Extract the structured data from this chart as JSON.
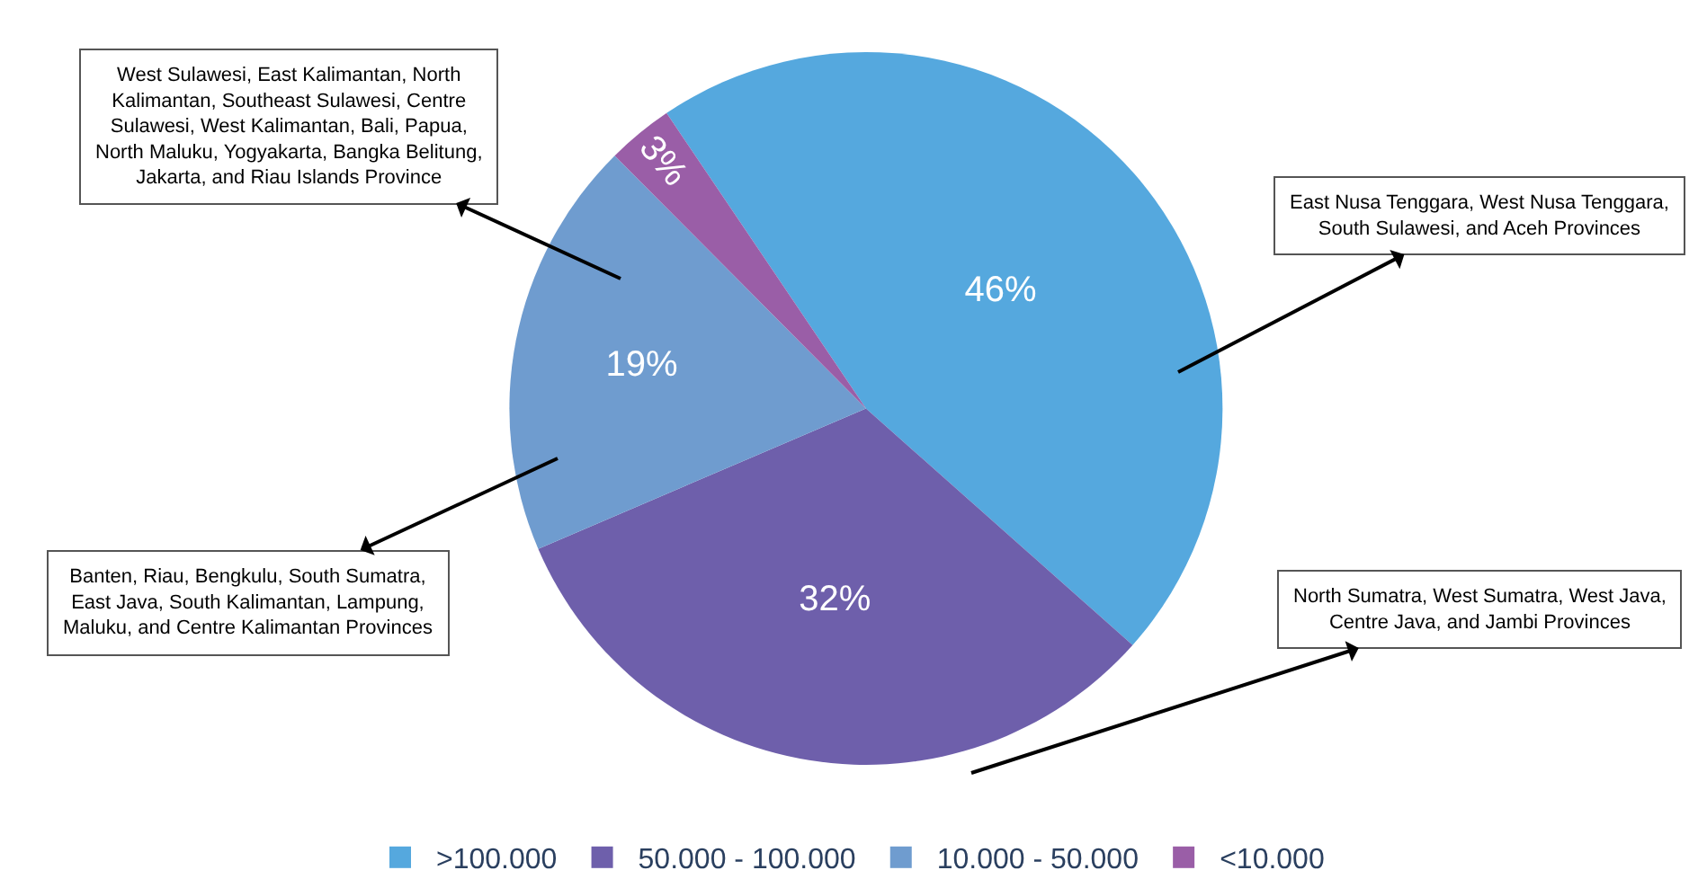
{
  "chart_data": {
    "type": "pie",
    "categories": [
      ">100.000",
      "50.000 - 100.000",
      "10.000 - 50.000",
      "<10.000"
    ],
    "values": [
      46,
      32,
      19,
      3
    ],
    "colors": [
      "#55a8de",
      "#6e5fab",
      "#6f9ccf",
      "#9a5ea7"
    ],
    "value_labels": [
      "46%",
      "32%",
      "19%",
      "3%"
    ],
    "legend": "bottom",
    "annotations": [
      "East Nusa Tenggara, West Nusa Tenggara, South Sulawesi, and Aceh Provinces",
      "North Sumatra, West Sumatra, West Java, Centre Java, and Jambi Provinces",
      "Banten, Riau, Bengkulu, South Sumatra, East Java, South Kalimantan, Lampung, Maluku, and Centre Kalimantan Provinces",
      "West Sulawesi, East Kalimantan, North Kalimantan, Southeast Sulawesi, Centre Sulawesi, West Kalimantan, Bali, Papua, North Maluku, Yogyakarta, Bangka Belitung, Jakarta, and Riau Islands Province"
    ]
  }
}
